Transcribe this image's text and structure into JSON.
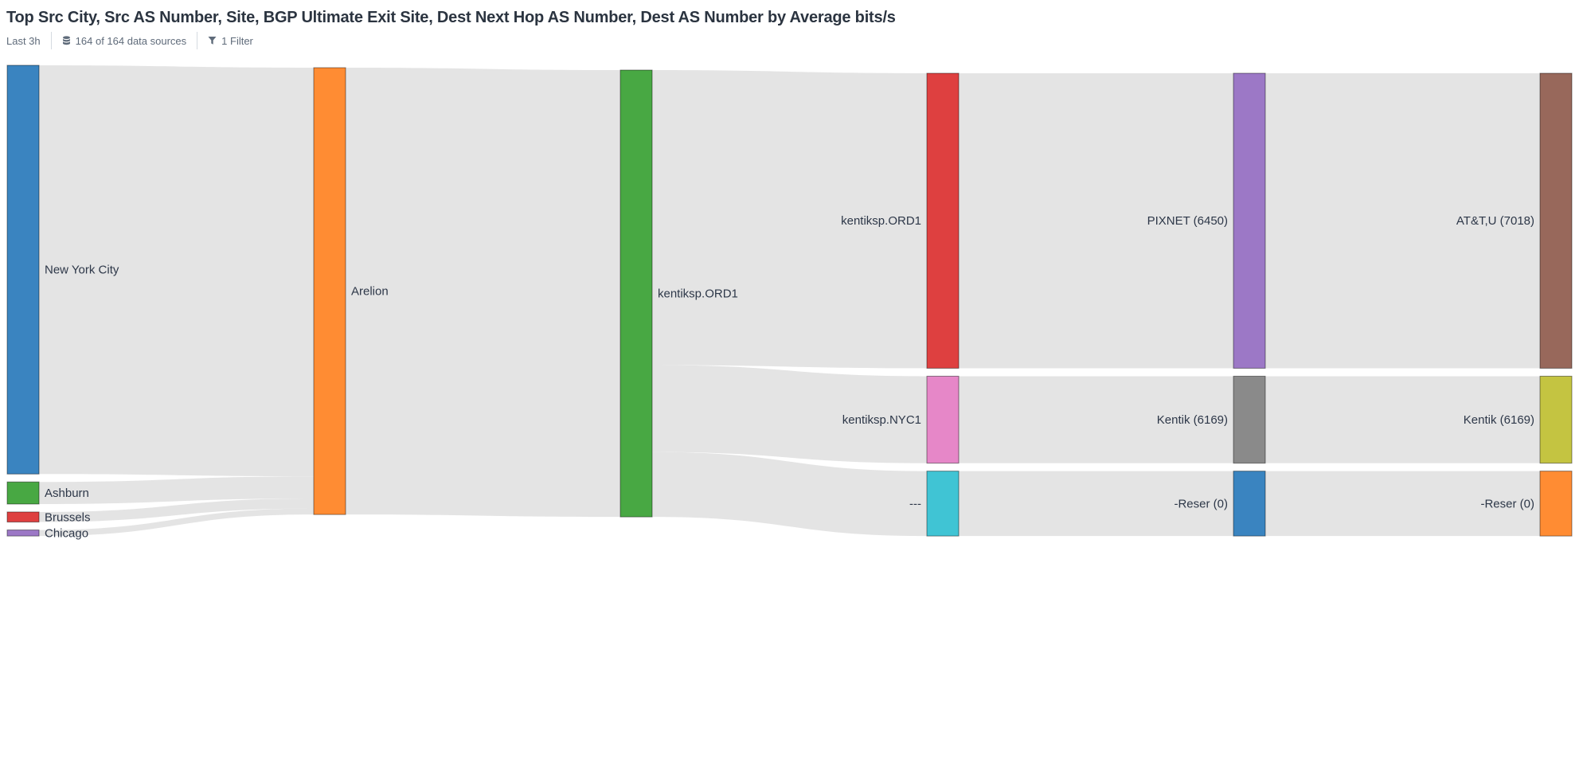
{
  "header": {
    "title": "Top Src City, Src AS Number, Site, BGP Ultimate Exit Site, Dest Next Hop AS Number, Dest AS Number by Average bits/s",
    "time_range": "Last 3h",
    "data_sources": "164 of 164 data sources",
    "filters": "1 Filter",
    "time_icon": "clock-icon",
    "data_sources_icon": "database-icon",
    "filters_icon": "funnel-icon"
  },
  "chart_data": {
    "type": "sankey",
    "title": "Top Src City, Src AS Number, Site, BGP Ultimate Exit Site, Dest Next Hop AS Number, Dest AS Number by Average bits/s",
    "metric": "Average bits/s",
    "units": "relative",
    "columns": [
      "Src City",
      "Src AS Number",
      "Site",
      "BGP Ultimate Exit Site",
      "Dest Next Hop AS Number",
      "Dest AS Number"
    ],
    "nodes": [
      {
        "id": "city_nyc",
        "label": "New York City",
        "column": 0,
        "color": "#3a84c0"
      },
      {
        "id": "city_ash",
        "label": "Ashburn",
        "column": 0,
        "color": "#48a843"
      },
      {
        "id": "city_bru",
        "label": "Brussels",
        "column": 0,
        "color": "#de4040"
      },
      {
        "id": "city_chi",
        "label": "Chicago",
        "column": 0,
        "color": "#9c78c6"
      },
      {
        "id": "as_arelion",
        "label": "Arelion",
        "column": 1,
        "color": "#ff8c33"
      },
      {
        "id": "site_ord1",
        "label": "kentiksp.ORD1",
        "column": 2,
        "color": "#48a843"
      },
      {
        "id": "exit_ord1",
        "label": "kentiksp.ORD1",
        "column": 3,
        "color": "#de4040"
      },
      {
        "id": "exit_nyc1",
        "label": "kentiksp.NYC1",
        "column": 3,
        "color": "#e687c8"
      },
      {
        "id": "exit_none",
        "label": "---",
        "column": 3,
        "color": "#40c4d4"
      },
      {
        "id": "nh_pixnet",
        "label": "PIXNET (6450)",
        "column": 4,
        "color": "#9c78c6"
      },
      {
        "id": "nh_kentik",
        "label": "Kentik (6169)",
        "column": 4,
        "color": "#8a8a8a"
      },
      {
        "id": "nh_reser",
        "label": "-Reser (0)",
        "column": 4,
        "color": "#3a84c0"
      },
      {
        "id": "dst_att",
        "label": "AT&T,U (7018)",
        "column": 5,
        "color": "#98685b"
      },
      {
        "id": "dst_kentik",
        "label": "Kentik (6169)",
        "column": 5,
        "color": "#c4c441"
      },
      {
        "id": "dst_reser",
        "label": "-Reser (0)",
        "column": 5,
        "color": "#ff8c33"
      }
    ],
    "links": [
      {
        "source": "city_nyc",
        "target": "as_arelion",
        "value": 611
      },
      {
        "source": "city_ash",
        "target": "as_arelion",
        "value": 33
      },
      {
        "source": "city_bru",
        "target": "as_arelion",
        "value": 15
      },
      {
        "source": "city_chi",
        "target": "as_arelion",
        "value": 9
      },
      {
        "source": "as_arelion",
        "target": "site_ord1",
        "value": 668
      },
      {
        "source": "site_ord1",
        "target": "exit_ord1",
        "value": 441
      },
      {
        "source": "site_ord1",
        "target": "exit_nyc1",
        "value": 130
      },
      {
        "source": "site_ord1",
        "target": "exit_none",
        "value": 97
      },
      {
        "source": "exit_ord1",
        "target": "nh_pixnet",
        "value": 441
      },
      {
        "source": "exit_nyc1",
        "target": "nh_kentik",
        "value": 130
      },
      {
        "source": "exit_none",
        "target": "nh_reser",
        "value": 97
      },
      {
        "source": "nh_pixnet",
        "target": "dst_att",
        "value": 441
      },
      {
        "source": "nh_kentik",
        "target": "dst_kentik",
        "value": 130
      },
      {
        "source": "nh_reser",
        "target": "dst_reser",
        "value": 97
      }
    ]
  }
}
